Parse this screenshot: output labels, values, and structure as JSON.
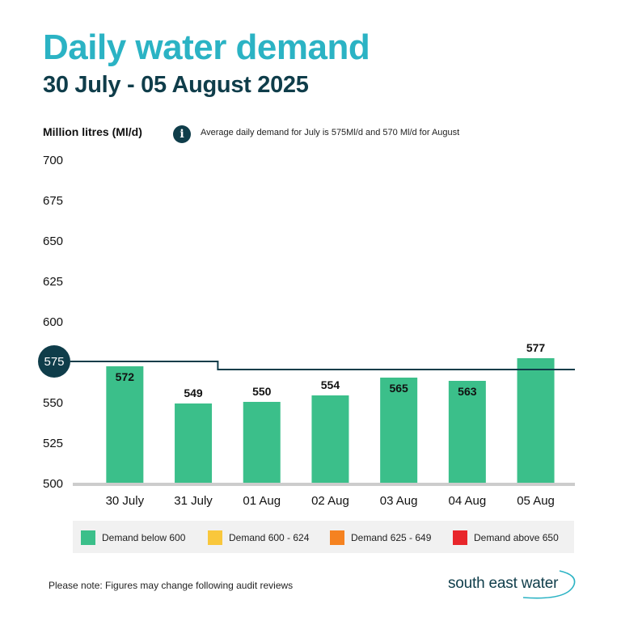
{
  "header": {
    "title": "Daily water demand",
    "subtitle": "30 July - 05 August 2025"
  },
  "info": {
    "icon": "info-icon",
    "glyph": "i",
    "text": "Average daily demand for July is 575Ml/d and 570 Ml/d for August"
  },
  "chart_data": {
    "type": "bar",
    "ylabel": "Million litres (Ml/d)",
    "xlabel": "",
    "ylim": [
      500,
      700
    ],
    "yticks": [
      500,
      525,
      550,
      575,
      600,
      625,
      650,
      675,
      700
    ],
    "highlighted_tick": 575,
    "categories": [
      "30 July",
      "31 July",
      "01 Aug",
      "02 Aug",
      "03 Aug",
      "04 Aug",
      "05 Aug"
    ],
    "values": [
      572,
      549,
      550,
      554,
      565,
      563,
      577
    ],
    "bar_color": "#3bbf8a",
    "average_lines": [
      {
        "label": "July average",
        "value": 575,
        "from_category": 0,
        "to_category": 1
      },
      {
        "label": "August average",
        "value": 570,
        "from_category": 2,
        "to_category": 6
      }
    ],
    "average_line_color": "#0f3d4a",
    "legend": [
      {
        "label": "Demand below 600",
        "color": "#3bbf8a"
      },
      {
        "label": "Demand 600 - 624",
        "color": "#f9c73c"
      },
      {
        "label": "Demand 625 - 649",
        "color": "#f58220"
      },
      {
        "label": "Demand above 650",
        "color": "#e8262b"
      }
    ]
  },
  "footer": {
    "note": "Please note: Figures may change following audit reviews",
    "logo_text": "south east water"
  }
}
